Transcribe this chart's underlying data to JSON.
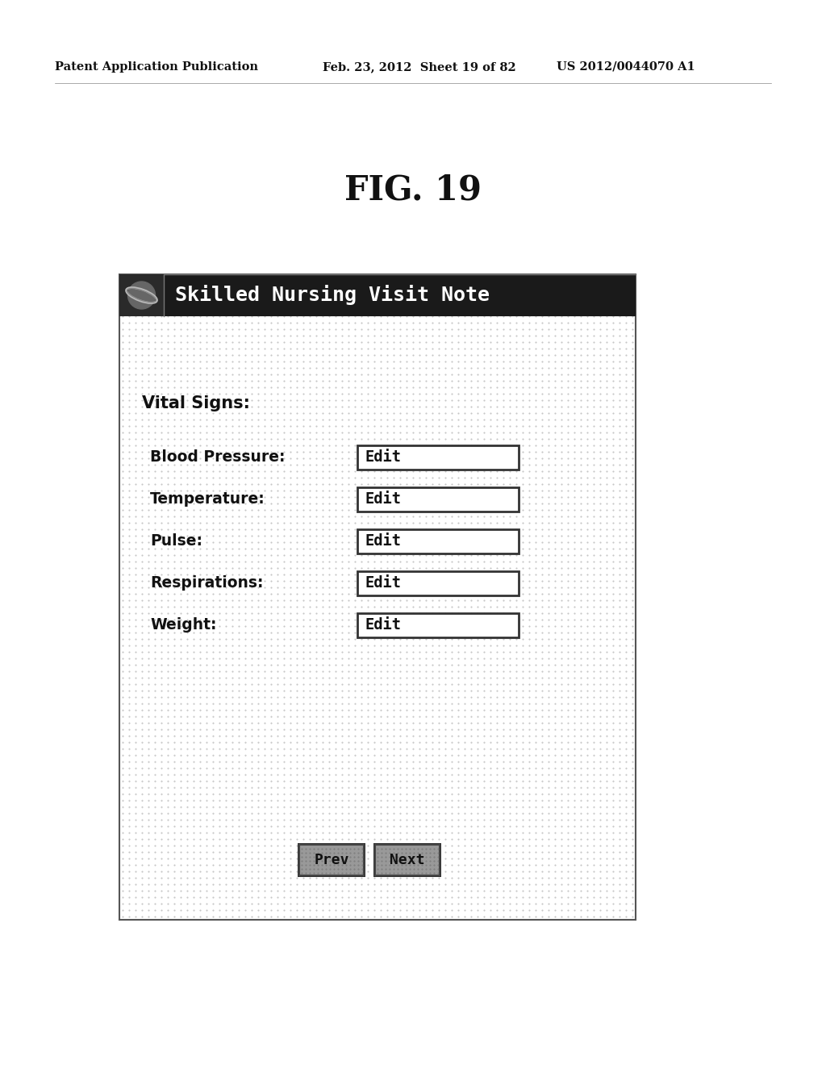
{
  "page_header_left": "Patent Application Publication",
  "page_header_middle": "Feb. 23, 2012  Sheet 19 of 82",
  "page_header_right": "US 2012/0044070 A1",
  "fig_title": "FIG. 19",
  "app_title": "Skilled Nursing Visit Note",
  "section_label": "Vital Signs:",
  "fields": [
    "Blood Pressure:",
    "Temperature:",
    "Pulse:",
    "Respirations:",
    "Weight:"
  ],
  "edit_label": "Edit",
  "prev_label": "Prev",
  "next_label": "Next",
  "bg_color": "#ffffff",
  "header_bg": "#1a1a1a",
  "header_text_color": "#ffffff",
  "edit_box_bg": "#ffffff",
  "edit_box_border": "#333333",
  "button_bg": "#999999",
  "button_border": "#222222",
  "dot_color": "#999999",
  "panel_border": "#555555",
  "text_color": "#111111"
}
